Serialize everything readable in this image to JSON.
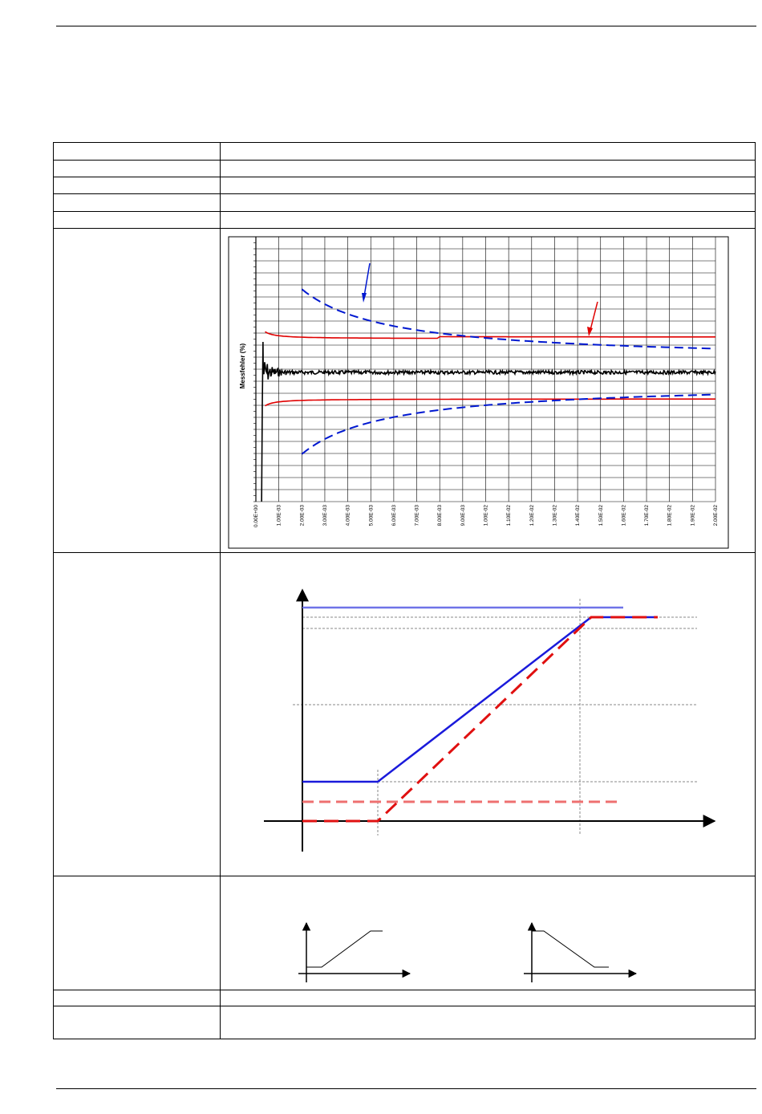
{
  "chart_data": {
    "type": "line",
    "ylabel": "Messfehler (%)",
    "x_ticks": [
      "0.00E+00",
      "1.00E-03",
      "2.00E-03",
      "3.00E-03",
      "4.00E-03",
      "5.00E-03",
      "6.00E-03",
      "7.00E-03",
      "8.00E-03",
      "9.00E-03",
      "1.00E-02",
      "1.10E-02",
      "1.20E-02",
      "1.30E-02",
      "1.40E-02",
      "1.50E-02",
      "1.60E-02",
      "1.70E-02",
      "1.80E-02",
      "1.90E-02",
      "2.00E-02"
    ],
    "xlim": [
      0,
      0.02
    ],
    "grid": true,
    "colors": {
      "solid_limits": "#e00000",
      "dashed_limits": "#0018d0",
      "measurement": "#000000",
      "annotation_arrow_blue": "#0018d0",
      "annotation_arrow_red": "#e00000"
    }
  },
  "diagram": {
    "colors": {
      "blue": "#1a1adb",
      "light_blue": "#6f73e8",
      "red": "#e01010",
      "light_red": "#ee7070",
      "grid_dashed": "#888888"
    }
  }
}
